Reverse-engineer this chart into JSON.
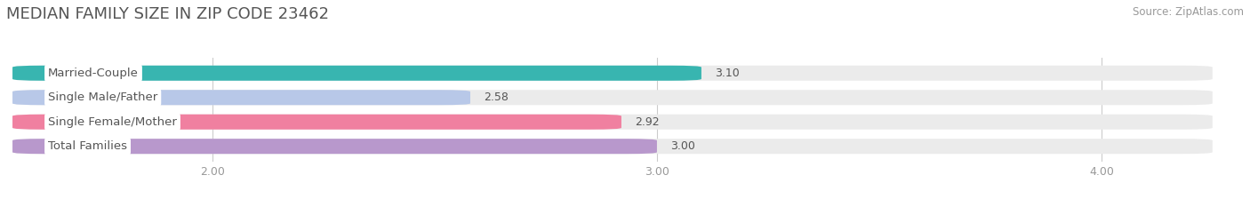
{
  "title": "MEDIAN FAMILY SIZE IN ZIP CODE 23462",
  "source": "Source: ZipAtlas.com",
  "categories": [
    "Married-Couple",
    "Single Male/Father",
    "Single Female/Mother",
    "Total Families"
  ],
  "values": [
    3.1,
    2.58,
    2.92,
    3.0
  ],
  "bar_colors": [
    "#38b5b0",
    "#b8c8e8",
    "#f080a0",
    "#b898cc"
  ],
  "xlim_min": 1.55,
  "xlim_max": 4.25,
  "xticks": [
    2.0,
    3.0,
    4.0
  ],
  "xtick_labels": [
    "2.00",
    "3.00",
    "4.00"
  ],
  "bar_height": 0.62,
  "label_fontsize": 9.5,
  "title_fontsize": 13,
  "value_fontsize": 9.0,
  "background_color": "#ffffff",
  "bar_background_color": "#ebebeb",
  "label_bg_color": "#ffffff",
  "grid_color": "#cccccc",
  "tick_color": "#999999",
  "title_color": "#555555",
  "value_color": "#555555",
  "label_text_color": "#555555"
}
